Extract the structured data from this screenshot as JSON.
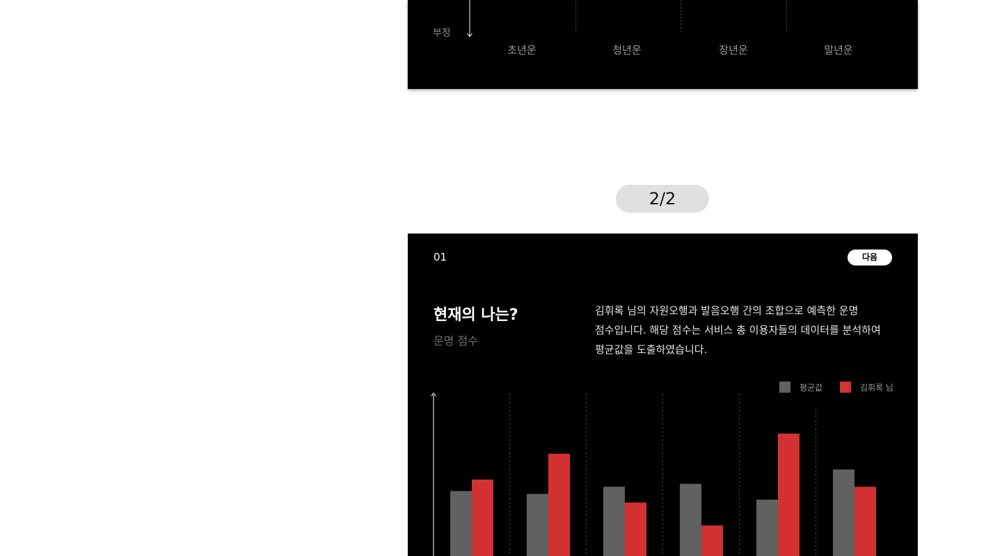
{
  "top_card": {
    "negative_label": "부정",
    "periods": [
      "초년운",
      "청년운",
      "장년운",
      "말년운"
    ]
  },
  "pager": {
    "label": "2/2"
  },
  "card": {
    "step": "01",
    "next_label": "다음",
    "title": "현재의 나는?",
    "subtitle": "운명 점수",
    "description": "김휘록 님의 자원오행과 발음오행 간의 조합으로 예측한 운명 점수입니다. 해당 점수는 서비스 총 이용자들의 데이터를 분석하여 평균값을 도출하였습니다."
  },
  "chart_data": {
    "type": "bar",
    "categories": [
      "",
      "",
      "",
      "",
      "",
      ""
    ],
    "series": [
      {
        "name": "평균값",
        "color": "#616161",
        "values": [
          52,
          50,
          55,
          57,
          46,
          67
        ]
      },
      {
        "name": "김휘록 님",
        "color": "#d23232",
        "values": [
          60,
          78,
          44,
          28,
          92,
          55
        ]
      }
    ],
    "ylim": [
      0,
      120
    ],
    "colors": {
      "accent": "#d23232",
      "average": "#616161",
      "background": "#000000"
    }
  }
}
